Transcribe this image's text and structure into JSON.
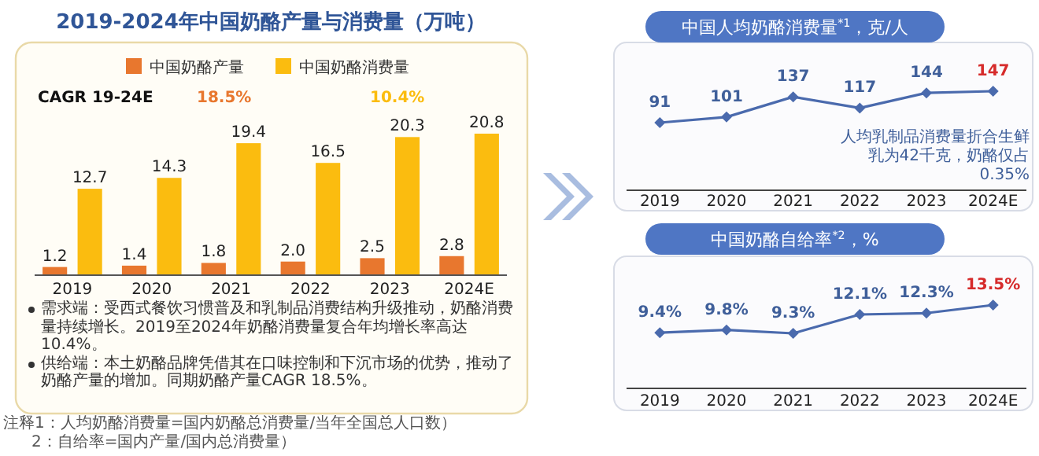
{
  "chart_data": [
    {
      "type": "bar",
      "title": "2019-2024年中国奶酪产量与消费量（万吨）",
      "categories": [
        "2019",
        "2020",
        "2021",
        "2022",
        "2023",
        "2024E"
      ],
      "series": [
        {
          "name": "中国奶酪产量",
          "color": "#e8772e",
          "values": [
            1.2,
            1.4,
            1.8,
            2.0,
            2.5,
            2.8
          ],
          "value_labels": [
            "1.2",
            "1.4",
            "1.8",
            "2.0",
            "2.5",
            "2.8"
          ]
        },
        {
          "name": "中国奶酪消费量",
          "color": "#fbbc0f",
          "values": [
            12.7,
            14.3,
            19.4,
            16.5,
            20.3,
            20.8
          ],
          "value_labels": [
            "12.7",
            "14.3",
            "19.4",
            "16.5",
            "20.3",
            "20.8"
          ]
        }
      ],
      "legend": "top",
      "annotations": [
        "CAGR 19-24E",
        "18.5%",
        "10.4%",
        "需求端：受西式餐饮习惯普及和乳制品消费结构升级推动，奶酪消费量持续增长。2019至2024年奶酪消费量复合年均增长率高达10.4%。",
        "供给端：本土奶酪品牌凭借其在口味控制和下沉市场的优势，推动了奶酪产量的增加。同期奶酪产量CAGR 18.5%。",
        "注释1：人均奶酪消费量=国内奶酪总消费量/当年全国总人口数）",
        "2：自给率=国内产量/国内总消费量）"
      ]
    },
    {
      "type": "line",
      "title": "中国人均奶酪消费量$^{*1}$，克/人",
      "categories": [
        "2019",
        "2020",
        "2021",
        "2022",
        "2023",
        "2024E"
      ],
      "series": [
        {
          "color": "#4a6aad",
          "values": [
            91,
            101,
            137,
            117,
            144,
            147
          ]
        }
      ],
      "data_labels": true,
      "marker": "diamond",
      "annotations": [
        "人均乳制品消费量折合生鲜乳为42千克，奶酪仅占0.35%"
      ]
    },
    {
      "type": "line",
      "title": "中国奶酪自给率$^{*2}$，%",
      "categories": [
        "2019",
        "2020",
        "2021",
        "2022",
        "2023",
        "2024E"
      ],
      "series": [
        {
          "color": "#4a6aad",
          "values": [
            9.4,
            9.8,
            9.3,
            12.1,
            12.3,
            13.5
          ],
          "value_labels": [
            "9.4%",
            "9.8%",
            "9.3%",
            "12.1%",
            "12.3%",
            "13.5%"
          ]
        }
      ],
      "marker": "diamond"
    }
  ]
}
